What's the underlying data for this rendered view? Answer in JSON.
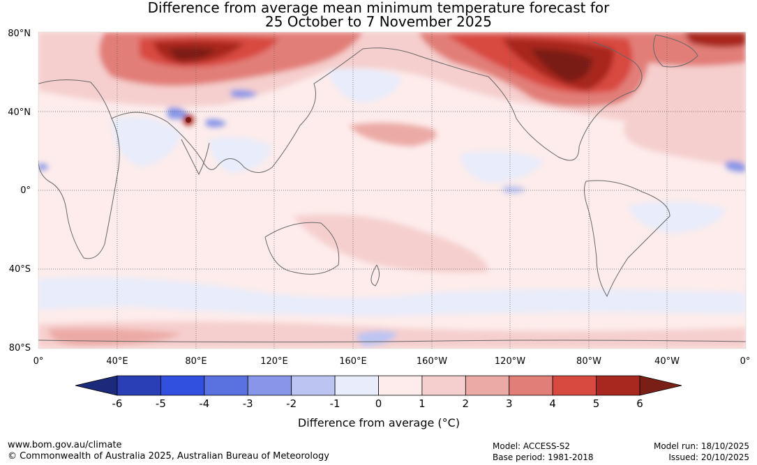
{
  "title": {
    "line1": "Difference from average mean minimum temperature forecast for",
    "line2": "25 October to 7 November 2025"
  },
  "map": {
    "lat_labels": [
      "80°N",
      "40°N",
      "0°",
      "40°S",
      "80°S"
    ],
    "lon_labels": [
      "0°",
      "40°E",
      "80°E",
      "120°E",
      "160°E",
      "160°W",
      "120°W",
      "80°W",
      "40°W",
      "0°"
    ]
  },
  "colorbar": {
    "ticks": [
      "-6",
      "-5",
      "-4",
      "-3",
      "-2",
      "-1",
      "0",
      "1",
      "2",
      "3",
      "4",
      "5",
      "6"
    ],
    "label": "Difference from average (°C)",
    "colors": {
      "below_min": "#1b2a7a",
      "bins": [
        "#2a3fb5",
        "#3150e0",
        "#5a71e0",
        "#8796e8",
        "#bcc5f2",
        "#e8ecfb",
        "#fdeceb",
        "#f5cfcd",
        "#ecaaa6",
        "#e27e78",
        "#d84a3f",
        "#a8281f"
      ],
      "above_max": "#7a1f15"
    }
  },
  "footer": {
    "website": "www.bom.gov.au/climate",
    "copyright": "© Commonwealth of Australia 2025, Australian Bureau of Meteorology",
    "model": "Model: ACCESS-S2",
    "base_period": "Base period: 1981-2018",
    "model_run": "Model run: 18/10/2025",
    "issued": "Issued: 20/10/2025"
  }
}
